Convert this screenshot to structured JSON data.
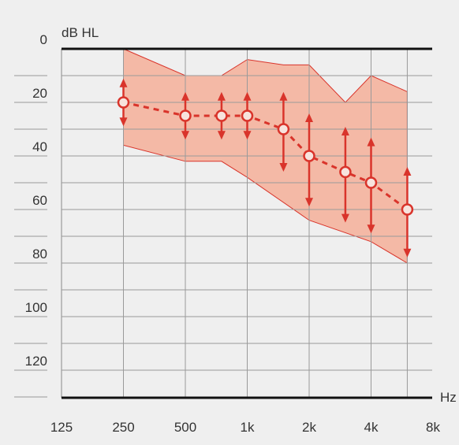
{
  "chart_data": {
    "type": "line",
    "title": "",
    "ylabel": "dB HL",
    "xlabel": "Hz",
    "x_scale": "log2",
    "y_inverted": true,
    "ylim": [
      0,
      130
    ],
    "y_ticks": [
      "0",
      "20",
      "40",
      "60",
      "80",
      "100",
      "120"
    ],
    "y_ticks_values": [
      0,
      20,
      40,
      60,
      80,
      100,
      120
    ],
    "x_tick_labels": [
      "125",
      "250",
      "500",
      "1k",
      "2k",
      "4k",
      "8k"
    ],
    "x_tick_values": [
      125,
      250,
      500,
      1000,
      2000,
      4000,
      8000
    ],
    "grid": true,
    "colors": {
      "band_fill": "#f4b9a6",
      "band_stroke": "#d9342b",
      "series": "#d9342b",
      "grid": "#9a9a9a",
      "axis": "#111111",
      "background": "#efefef"
    },
    "series": [
      {
        "x": [
          250,
          500,
          750,
          1000,
          1500,
          2000,
          3000,
          4000,
          6000
        ],
        "values": [
          20,
          25,
          25,
          25,
          30,
          40,
          46,
          50,
          60
        ],
        "range_low": [
          12,
          17,
          17,
          17,
          17,
          25,
          30,
          34,
          45
        ],
        "range_high": [
          28,
          33,
          33,
          33,
          45,
          58,
          64,
          68,
          77
        ]
      }
    ],
    "band": {
      "upper_x": [
        250,
        500,
        750,
        1000,
        1500,
        2000,
        3000,
        4000,
        6000
      ],
      "upper_values": [
        0,
        10,
        10,
        4,
        6,
        6,
        20,
        10,
        16
      ],
      "lower_x": [
        250,
        500,
        750,
        1000,
        2000,
        4000,
        6000
      ],
      "lower_values": [
        36,
        42,
        42,
        48,
        64,
        72,
        80
      ]
    }
  }
}
